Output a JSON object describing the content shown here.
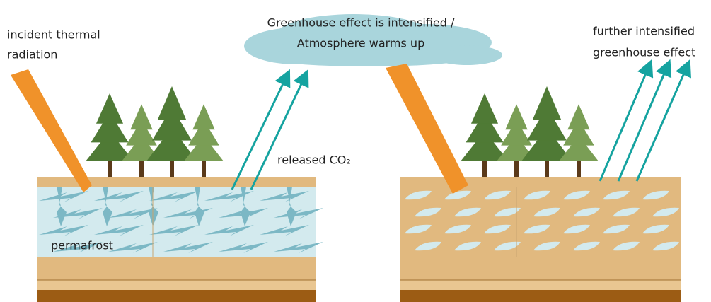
{
  "labels": {
    "incident": [
      "incident thermal",
      "radiation"
    ],
    "cloud": [
      "Greenhouse effect is intensified /",
      "Atmosphere warms up"
    ],
    "further": [
      "further intensified",
      "greenhouse effect"
    ],
    "released": "released CO₂",
    "permafrost": "permafrost"
  }
}
